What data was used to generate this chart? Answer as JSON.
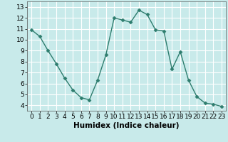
{
  "x": [
    0,
    1,
    2,
    3,
    4,
    5,
    6,
    7,
    8,
    9,
    10,
    11,
    12,
    13,
    14,
    15,
    16,
    17,
    18,
    19,
    20,
    21,
    22,
    23
  ],
  "y": [
    10.9,
    10.3,
    9.0,
    7.8,
    6.5,
    5.4,
    4.7,
    4.5,
    6.3,
    8.6,
    12.0,
    11.8,
    11.6,
    12.7,
    12.3,
    10.9,
    10.8,
    7.3,
    8.9,
    6.3,
    4.8,
    4.2,
    4.1,
    3.9
  ],
  "line_color": "#2e7d6e",
  "marker": "D",
  "marker_size": 2.5,
  "bg_color": "#c8eaea",
  "grid_color": "#ffffff",
  "xlabel": "Humidex (Indice chaleur)",
  "ylim": [
    3.5,
    13.5
  ],
  "xlim": [
    -0.5,
    23.5
  ],
  "yticks": [
    4,
    5,
    6,
    7,
    8,
    9,
    10,
    11,
    12,
    13
  ],
  "xticks": [
    0,
    1,
    2,
    3,
    4,
    5,
    6,
    7,
    8,
    9,
    10,
    11,
    12,
    13,
    14,
    15,
    16,
    17,
    18,
    19,
    20,
    21,
    22,
    23
  ],
  "xlabel_fontsize": 7.5,
  "tick_fontsize": 6.5,
  "line_width": 1.0
}
